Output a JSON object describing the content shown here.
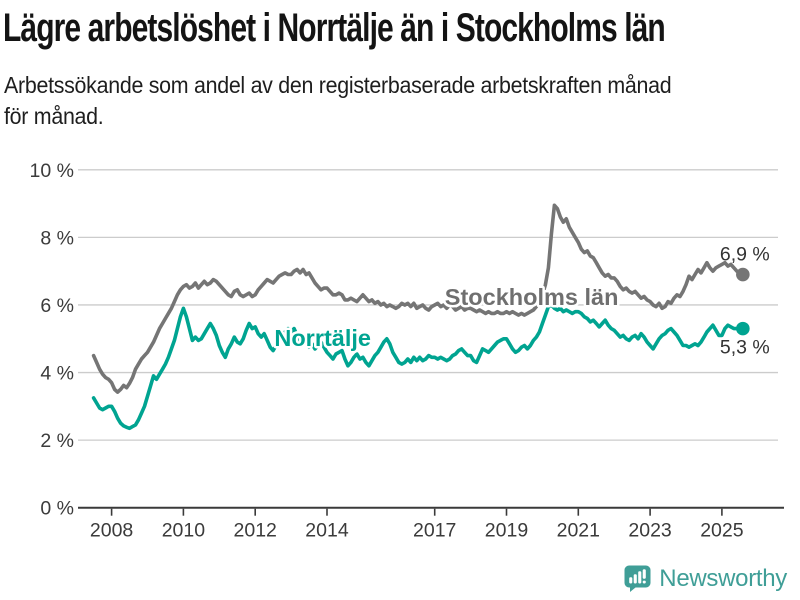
{
  "page": {
    "title": "Lägre arbetslöshet i Norrtälje än i Stockholms län",
    "subtitle_line1": "Arbetssökande som andel av den registerbaserade arbetskraften månad",
    "subtitle_line2": "för månad."
  },
  "branding": {
    "name": "Newsworthy",
    "icon": "newsworthy-speech-bubble-bar-chart-icon",
    "color": "#3f9e97"
  },
  "chart_data": {
    "type": "line",
    "unit": "%",
    "frequency": "monthly",
    "start": "2007-07",
    "end": "2025-08",
    "grid": "horizontal",
    "x_axis": {
      "ticks": [
        2008,
        2010,
        2012,
        2014,
        2017,
        2019,
        2021,
        2023,
        2025
      ]
    },
    "y_axis": {
      "range": [
        0,
        10
      ],
      "ticks": [
        0,
        2,
        4,
        6,
        8,
        10
      ],
      "labels": [
        "0 %",
        "2 %",
        "4 %",
        "6 %",
        "8 %",
        "10 %"
      ]
    },
    "series": [
      {
        "name": "Stockholms län",
        "color": "#757575",
        "end_label": "6,9 %",
        "end_value": 6.9,
        "values": [
          4.5,
          4.3,
          4.1,
          3.95,
          3.85,
          3.8,
          3.7,
          3.5,
          3.42,
          3.5,
          3.62,
          3.55,
          3.68,
          3.85,
          4.1,
          4.25,
          4.4,
          4.5,
          4.6,
          4.75,
          4.9,
          5.1,
          5.3,
          5.45,
          5.6,
          5.75,
          5.9,
          6.1,
          6.3,
          6.45,
          6.55,
          6.6,
          6.5,
          6.55,
          6.65,
          6.5,
          6.6,
          6.7,
          6.6,
          6.65,
          6.75,
          6.7,
          6.6,
          6.5,
          6.4,
          6.3,
          6.25,
          6.4,
          6.45,
          6.3,
          6.25,
          6.3,
          6.35,
          6.25,
          6.3,
          6.45,
          6.55,
          6.65,
          6.75,
          6.7,
          6.65,
          6.75,
          6.85,
          6.9,
          6.95,
          6.9,
          6.9,
          7.0,
          7.05,
          6.95,
          7.05,
          6.9,
          6.95,
          6.8,
          6.65,
          6.55,
          6.45,
          6.5,
          6.5,
          6.4,
          6.3,
          6.3,
          6.35,
          6.3,
          6.15,
          6.15,
          6.2,
          6.15,
          6.1,
          6.2,
          6.3,
          6.2,
          6.1,
          6.15,
          6.05,
          6.1,
          6.0,
          6.05,
          5.95,
          6.0,
          5.95,
          5.9,
          5.95,
          6.05,
          6.0,
          6.05,
          5.95,
          6.05,
          5.9,
          5.95,
          6.0,
          5.9,
          5.85,
          5.95,
          6.0,
          6.05,
          5.95,
          6.0,
          5.9,
          6.0,
          5.95,
          5.85,
          5.9,
          5.95,
          5.85,
          5.9,
          5.9,
          5.85,
          5.8,
          5.85,
          5.8,
          5.75,
          5.8,
          5.75,
          5.75,
          5.8,
          5.75,
          5.75,
          5.8,
          5.75,
          5.8,
          5.75,
          5.7,
          5.75,
          5.7,
          5.75,
          5.8,
          5.85,
          5.95,
          6.1,
          6.3,
          6.6,
          7.1,
          8.1,
          8.95,
          8.85,
          8.6,
          8.45,
          8.55,
          8.3,
          8.15,
          8.0,
          7.85,
          7.65,
          7.55,
          7.6,
          7.45,
          7.4,
          7.25,
          7.1,
          6.95,
          6.85,
          6.9,
          6.8,
          6.8,
          6.7,
          6.55,
          6.45,
          6.5,
          6.4,
          6.35,
          6.4,
          6.3,
          6.2,
          6.25,
          6.15,
          6.1,
          6.0,
          5.95,
          6.05,
          5.9,
          5.95,
          6.1,
          6.05,
          6.2,
          6.3,
          6.25,
          6.4,
          6.6,
          6.85,
          6.75,
          6.9,
          7.05,
          6.95,
          7.1,
          7.25,
          7.1,
          7.0,
          7.1,
          7.15,
          7.2,
          7.25,
          7.15,
          7.2,
          7.1,
          7.0,
          6.95,
          6.9
        ]
      },
      {
        "name": "Norrtälje",
        "color": "#00a491",
        "end_label": "5,3 %",
        "end_value": 5.3,
        "values": [
          3.25,
          3.1,
          2.95,
          2.9,
          2.95,
          3.0,
          3.0,
          2.85,
          2.65,
          2.5,
          2.42,
          2.38,
          2.35,
          2.4,
          2.45,
          2.6,
          2.8,
          3.0,
          3.3,
          3.6,
          3.9,
          3.8,
          3.95,
          4.1,
          4.25,
          4.45,
          4.7,
          4.95,
          5.3,
          5.65,
          5.9,
          5.65,
          5.3,
          4.95,
          5.05,
          4.95,
          5.0,
          5.15,
          5.3,
          5.45,
          5.3,
          5.1,
          4.8,
          4.6,
          4.45,
          4.7,
          4.85,
          5.05,
          4.9,
          4.85,
          5.0,
          5.25,
          5.45,
          5.3,
          5.35,
          5.15,
          5.05,
          5.15,
          4.95,
          4.75,
          4.65,
          4.8,
          4.95,
          5.1,
          5.2,
          5.3,
          5.2,
          5.3,
          5.1,
          4.95,
          5.05,
          4.9,
          4.75,
          4.85,
          4.7,
          4.8,
          4.9,
          4.75,
          4.6,
          4.5,
          4.4,
          4.55,
          4.6,
          4.65,
          4.4,
          4.2,
          4.3,
          4.45,
          4.55,
          4.4,
          4.45,
          4.3,
          4.2,
          4.35,
          4.5,
          4.6,
          4.75,
          4.9,
          5.0,
          4.85,
          4.6,
          4.45,
          4.3,
          4.25,
          4.3,
          4.4,
          4.3,
          4.45,
          4.35,
          4.45,
          4.35,
          4.4,
          4.5,
          4.45,
          4.45,
          4.4,
          4.45,
          4.4,
          4.35,
          4.4,
          4.5,
          4.55,
          4.65,
          4.7,
          4.6,
          4.5,
          4.5,
          4.35,
          4.3,
          4.5,
          4.7,
          4.65,
          4.6,
          4.7,
          4.8,
          4.9,
          4.95,
          5.0,
          5.0,
          4.85,
          4.7,
          4.6,
          4.65,
          4.75,
          4.8,
          4.7,
          4.8,
          4.95,
          5.05,
          5.2,
          5.45,
          5.7,
          5.95,
          6.0,
          5.9,
          5.85,
          5.9,
          5.8,
          5.85,
          5.8,
          5.75,
          5.8,
          5.8,
          5.75,
          5.65,
          5.6,
          5.5,
          5.55,
          5.45,
          5.35,
          5.45,
          5.55,
          5.4,
          5.3,
          5.25,
          5.15,
          5.05,
          5.1,
          5.0,
          4.95,
          5.05,
          5.1,
          5.0,
          5.15,
          5.05,
          4.9,
          4.8,
          4.7,
          4.85,
          5.0,
          5.1,
          5.15,
          5.25,
          5.3,
          5.2,
          5.1,
          4.95,
          4.8,
          4.8,
          4.75,
          4.8,
          4.85,
          4.8,
          4.9,
          5.05,
          5.2,
          5.3,
          5.4,
          5.25,
          5.1,
          5.1,
          5.3,
          5.4,
          5.35,
          5.3,
          5.3,
          5.3,
          5.3
        ]
      }
    ],
    "series_labels": [
      {
        "text": "Stockholms län",
        "year": 2019.7,
        "value": 6.23,
        "color": "#6f6f6f"
      },
      {
        "text": "Norrtälje",
        "year": 2013.88,
        "value": 5.02,
        "color": "#00a491"
      }
    ],
    "colors": {
      "gridline": "#cccccc",
      "axis": "#3a3a3a",
      "tick_text": "#3b3b3b",
      "end_label_text": "#333333"
    }
  }
}
